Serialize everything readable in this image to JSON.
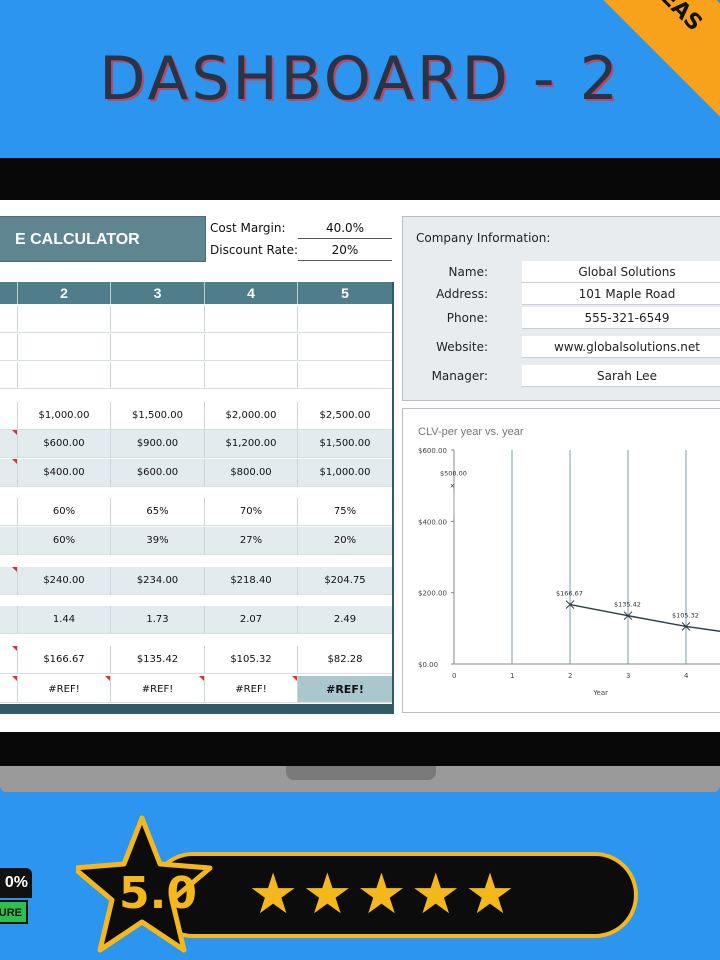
{
  "banner": {
    "title": "DASHBOARD - 2",
    "corner_tag": "EAS"
  },
  "calculator": {
    "title": "E CALCULATOR",
    "params": [
      {
        "label": "Cost Margin:",
        "value": "40.0%"
      },
      {
        "label": "Discount Rate:",
        "value": "20%"
      }
    ],
    "columns": [
      "2",
      "3",
      "4",
      "5"
    ],
    "rows": [
      {
        "values": [
          "",
          "",
          "",
          ""
        ],
        "shade": false
      },
      {
        "values": [
          "",
          "",
          "",
          ""
        ],
        "shade": false
      },
      {
        "values": [
          "",
          "",
          "",
          ""
        ],
        "shade": false
      },
      {
        "values": [
          "$1,000.00",
          "$1,500.00",
          "$2,000.00",
          "$2,500.00"
        ],
        "shade": false
      },
      {
        "values": [
          "$600.00",
          "$900.00",
          "$1,200.00",
          "$1,500.00"
        ],
        "shade": true
      },
      {
        "values": [
          "$400.00",
          "$600.00",
          "$800.00",
          "$1,000.00"
        ],
        "shade": true
      },
      {
        "values": [
          "60%",
          "65%",
          "70%",
          "75%"
        ],
        "shade": false
      },
      {
        "values": [
          "60%",
          "39%",
          "27%",
          "20%"
        ],
        "shade": true
      },
      {
        "values": [
          "$240.00",
          "$234.00",
          "$218.40",
          "$204.75"
        ],
        "shade": true
      },
      {
        "values": [
          "1.44",
          "1.73",
          "2.07",
          "2.49"
        ],
        "shade": true
      },
      {
        "values": [
          "$166.67",
          "$135.42",
          "$105.32",
          "$82.28"
        ],
        "shade": false
      },
      {
        "values": [
          "#REF!",
          "#REF!",
          "#REF!",
          "#REF!"
        ],
        "shade": false
      }
    ]
  },
  "company": {
    "heading": "Company Information:",
    "fields": [
      {
        "label": "Name:",
        "value": "Global Solutions"
      },
      {
        "label": "Address:",
        "value": "101 Maple Road"
      },
      {
        "label": "Phone:",
        "value": "555-321-6549"
      },
      {
        "label": "Website:",
        "value": "www.globalsolutions.net"
      },
      {
        "label": "Manager:",
        "value": "Sarah Lee"
      }
    ]
  },
  "chart_data": {
    "type": "line",
    "title": "CLV-per year vs. year",
    "xlabel": "Year",
    "ylabel": "",
    "x_ticks": [
      "0",
      "1",
      "2",
      "3",
      "4"
    ],
    "y_ticks": [
      "$0.00",
      "$200.00",
      "$400.00",
      "$600.00"
    ],
    "ylim": [
      0,
      600
    ],
    "xlim": [
      0,
      5
    ],
    "grid": "vertical",
    "series": [
      {
        "x": [
          0,
          2,
          3,
          4,
          5
        ],
        "values": [
          500,
          166.67,
          135.42,
          105.32,
          82.28
        ],
        "labels": [
          "$500.00",
          "$166.67",
          "$135.42",
          "$105.32",
          ""
        ]
      }
    ]
  },
  "rating": {
    "score": "5.0",
    "stars": "★★★★★"
  },
  "certificate": {
    "top": "0%",
    "bottom": "URE"
  },
  "colors": {
    "banner": "#2b95ef",
    "header_teal": "#4f7d89",
    "accent": "#f5b81c"
  }
}
